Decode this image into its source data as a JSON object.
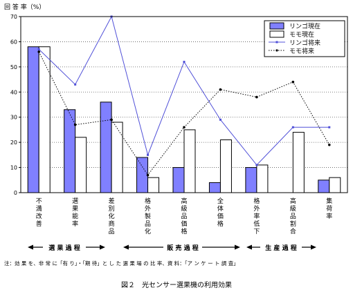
{
  "chart_data": {
    "type": "bar",
    "ylabel": "回 答 率（%）",
    "ylim": [
      0,
      70
    ],
    "yticks": [
      0,
      10,
      20,
      30,
      40,
      50,
      60,
      70
    ],
    "grid": "horizontal dotted",
    "legend_position": "top-right",
    "categories": [
      "不満改善",
      "選果能率",
      "差別化商品",
      "格外製品化",
      "高級品価格",
      "全体価格",
      "格外率低下",
      "高級品割合",
      "集荷率"
    ],
    "series": [
      {
        "name": "リンゴ現在",
        "kind": "bar",
        "color": "#8080ff",
        "values": [
          58,
          33,
          36,
          14,
          10,
          4,
          10,
          null,
          5
        ]
      },
      {
        "name": "モモ現在",
        "kind": "bar",
        "color": "#ffffff",
        "values": [
          58,
          22,
          28,
          6,
          25,
          21,
          11,
          24,
          6
        ]
      },
      {
        "name": "リンゴ将来",
        "kind": "line",
        "color": "#5050d8",
        "values": [
          57,
          43,
          70,
          15,
          52,
          29,
          11,
          26,
          26
        ]
      },
      {
        "name": "モモ将来",
        "kind": "line",
        "color": "#000000",
        "values": [
          56,
          27,
          29,
          7,
          26,
          41,
          38,
          44,
          19
        ]
      }
    ],
    "groups": [
      {
        "label": "選 果 過 程",
        "from": 0,
        "to": 2
      },
      {
        "label": "販 売 過 程",
        "from": 3,
        "to": 5
      },
      {
        "label": "生 産 過 程",
        "from": 6,
        "to": 8
      }
    ],
    "note": "注：効 果 を、非 常 に「有 り」・「期 待」と し た 選 果 場 の 比 率、資 料：「ア ン ケ ー ト 調 査」",
    "caption": "図２　光センサー選果機の利用効果"
  }
}
